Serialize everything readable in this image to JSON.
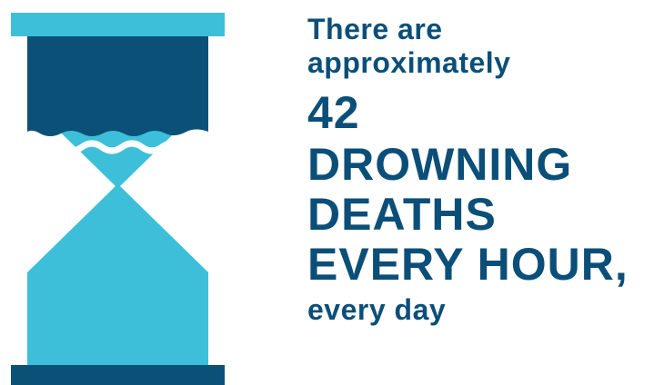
{
  "colors": {
    "dark_blue": "#0b5077",
    "light_blue": "#3dbfd9",
    "text": "#0b4f79",
    "background": "#ffffff"
  },
  "graphic": {
    "icon": "hourglass-icon"
  },
  "statement": {
    "line1": "There are",
    "line2": "approximately",
    "line3": "42",
    "line4": "DROWNING",
    "line5": "DEATHS",
    "line6": "EVERY HOUR,",
    "line7": "every day"
  }
}
